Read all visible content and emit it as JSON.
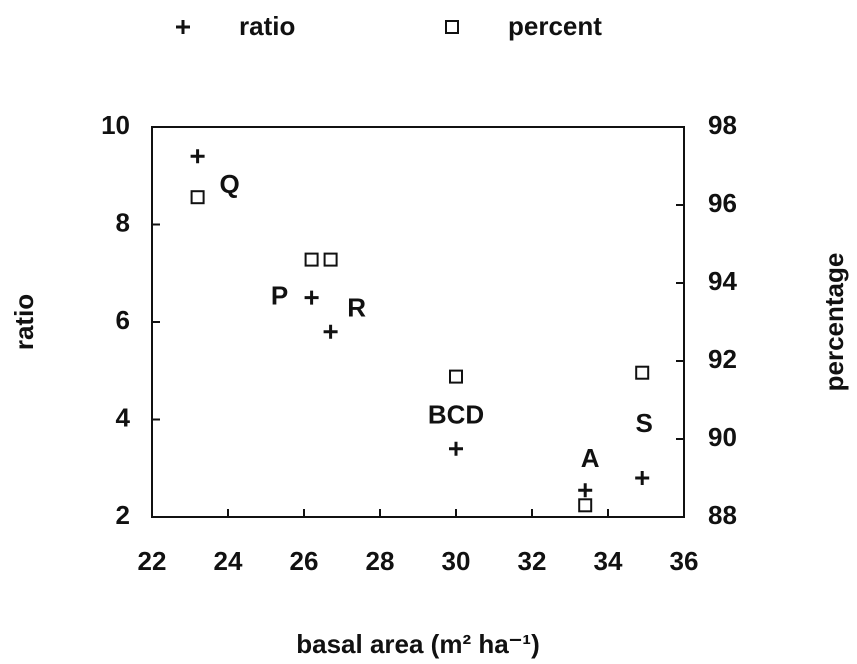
{
  "chart_data": {
    "type": "scatter",
    "x_label": "basal area (m² ha⁻¹)",
    "y_label": "ratio",
    "y2_label": "percentage",
    "x": [
      23.2,
      26.2,
      26.7,
      30.0,
      33.4,
      34.9
    ],
    "point_labels": [
      "Q",
      "P",
      "R",
      "BCD",
      "A",
      "S"
    ],
    "series": [
      {
        "name": "ratio",
        "color": "#111111",
        "marker": "plus",
        "values": [
          9.4,
          6.5,
          5.8,
          3.4,
          2.55,
          2.8
        ]
      },
      {
        "name": "percent",
        "color": "#111111",
        "marker": "square",
        "axis": "y2",
        "values": [
          96.2,
          94.6,
          94.6,
          91.6,
          88.3,
          91.7
        ]
      }
    ],
    "xlim": [
      22,
      36
    ],
    "xticks": [
      22,
      24,
      26,
      28,
      30,
      32,
      34,
      36
    ],
    "ylim": [
      2,
      10
    ],
    "yticks": [
      2,
      4,
      6,
      8,
      10
    ],
    "y2lim": [
      88,
      98
    ],
    "y2ticks": [
      88,
      90,
      92,
      94,
      96,
      98
    ]
  }
}
